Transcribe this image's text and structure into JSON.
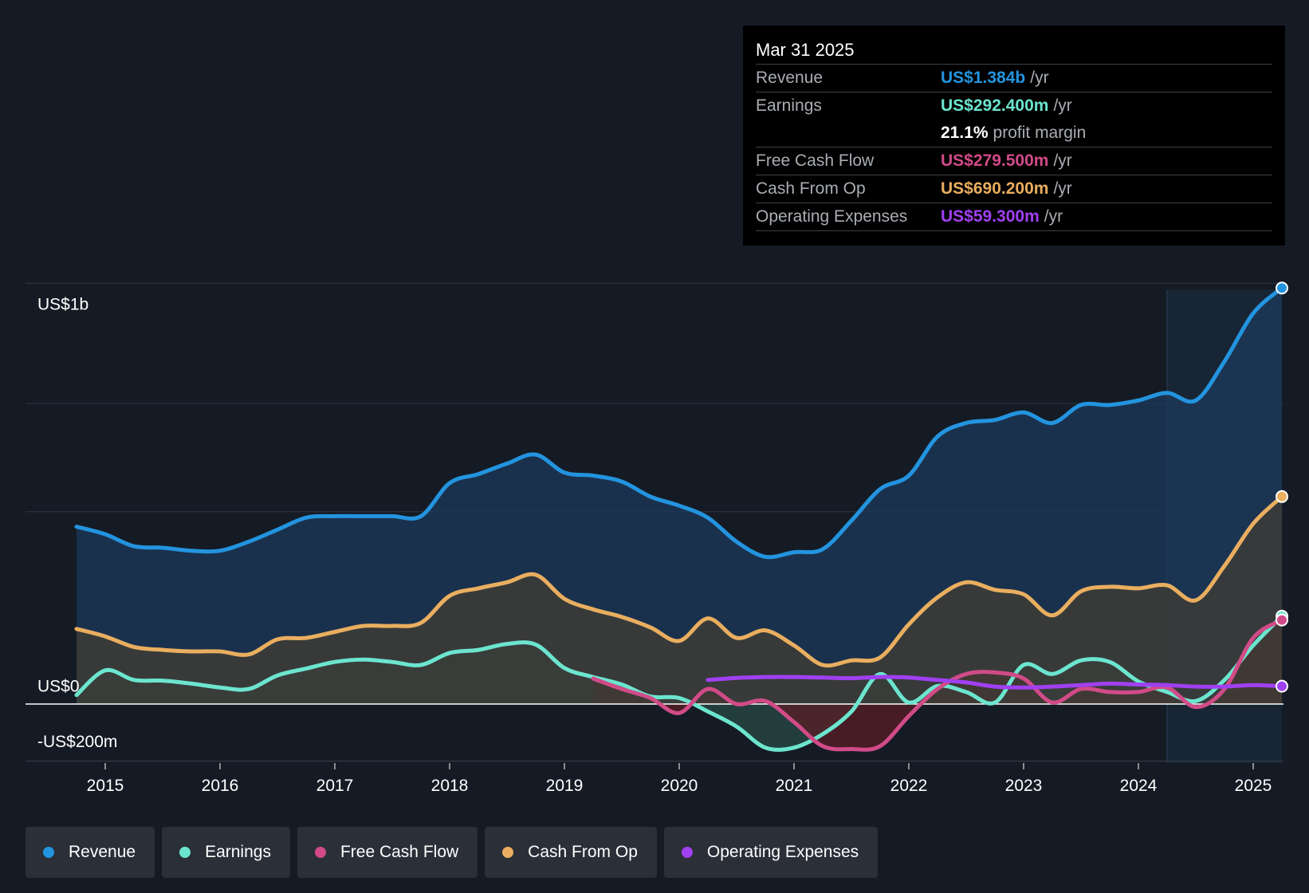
{
  "tooltip": {
    "date": "Mar 31 2025",
    "rows": [
      {
        "label": "Revenue",
        "value": "US$1.384b",
        "suffix": "/yr",
        "color": "#2394df"
      },
      {
        "label": "Earnings",
        "value": "US$292.400m",
        "suffix": "/yr",
        "color": "#6ce5cf"
      },
      {
        "label": "",
        "value": "21.1%",
        "suffix": "profit margin",
        "color": "#ffffff"
      },
      {
        "label": "Free Cash Flow",
        "value": "US$279.500m",
        "suffix": "/yr",
        "color": "#d14b88"
      },
      {
        "label": "Cash From Op",
        "value": "US$690.200m",
        "suffix": "/yr",
        "color": "#e9ae5f"
      },
      {
        "label": "Operating Expenses",
        "value": "US$59.300m",
        "suffix": "/yr",
        "color": "#a040f0"
      }
    ]
  },
  "legend": [
    {
      "label": "Revenue",
      "color": "#2394df"
    },
    {
      "label": "Earnings",
      "color": "#6ce5cf"
    },
    {
      "label": "Free Cash Flow",
      "color": "#d14b88"
    },
    {
      "label": "Cash From Op",
      "color": "#e9ae5f"
    },
    {
      "label": "Operating Expenses",
      "color": "#a040f0"
    }
  ],
  "chart_data": {
    "type": "area",
    "title": "",
    "xlabel": "",
    "ylabel": "",
    "y_axis_labels": [
      "US$1b",
      "US$0",
      "-US$200m"
    ],
    "x_ticks": [
      "2015",
      "2016",
      "2017",
      "2018",
      "2019",
      "2020",
      "2021",
      "2022",
      "2023",
      "2024",
      "2025"
    ],
    "xlim": [
      2014.7,
      2025.25
    ],
    "ylim": [
      -200,
      1400
    ],
    "forecast_start": 2024.25,
    "series": [
      {
        "name": "Revenue",
        "color": "#2394df",
        "fill": true,
        "x": [
          2014.75,
          2015.0,
          2015.25,
          2015.5,
          2015.75,
          2016.0,
          2016.25,
          2016.5,
          2016.75,
          2017.0,
          2017.25,
          2017.5,
          2017.75,
          2018.0,
          2018.25,
          2018.5,
          2018.75,
          2019.0,
          2019.25,
          2019.5,
          2019.75,
          2020.0,
          2020.25,
          2020.5,
          2020.75,
          2021.0,
          2021.25,
          2021.5,
          2021.75,
          2022.0,
          2022.25,
          2022.5,
          2022.75,
          2023.0,
          2023.25,
          2023.5,
          2023.75,
          2024.0,
          2024.25,
          2024.5,
          2024.75,
          2025.0,
          2025.25
        ],
        "values": [
          590,
          565,
          525,
          520,
          510,
          510,
          540,
          580,
          620,
          625,
          625,
          625,
          625,
          735,
          765,
          800,
          830,
          770,
          760,
          740,
          690,
          660,
          620,
          540,
          490,
          505,
          515,
          610,
          715,
          760,
          890,
          935,
          945,
          970,
          935,
          995,
          995,
          1010,
          1035,
          1010,
          1140,
          1300,
          1384
        ]
      },
      {
        "name": "Earnings",
        "color": "#6ce5cf",
        "fill": true,
        "x": [
          2014.75,
          2015.0,
          2015.25,
          2015.5,
          2015.75,
          2016.0,
          2016.25,
          2016.5,
          2016.75,
          2017.0,
          2017.25,
          2017.5,
          2017.75,
          2018.0,
          2018.25,
          2018.5,
          2018.75,
          2019.0,
          2019.25,
          2019.5,
          2019.75,
          2020.0,
          2020.25,
          2020.5,
          2020.75,
          2021.0,
          2021.25,
          2021.5,
          2021.75,
          2022.0,
          2022.25,
          2022.5,
          2022.75,
          2023.0,
          2023.25,
          2023.5,
          2023.75,
          2024.0,
          2024.25,
          2024.5,
          2024.75,
          2025.0,
          2025.25
        ],
        "values": [
          30,
          112,
          80,
          78,
          68,
          55,
          50,
          95,
          118,
          140,
          148,
          140,
          130,
          170,
          180,
          200,
          198,
          120,
          90,
          65,
          25,
          20,
          -25,
          -75,
          -145,
          -145,
          -100,
          -25,
          100,
          5,
          60,
          40,
          5,
          130,
          100,
          145,
          140,
          75,
          40,
          10,
          80,
          195,
          292.4
        ]
      },
      {
        "name": "Free Cash Flow",
        "color": "#d14b88",
        "fill": true,
        "x": [
          2019.25,
          2019.5,
          2019.75,
          2020.0,
          2020.25,
          2020.5,
          2020.75,
          2021.0,
          2021.25,
          2021.5,
          2021.75,
          2022.0,
          2022.25,
          2022.5,
          2022.75,
          2023.0,
          2023.25,
          2023.5,
          2023.75,
          2024.0,
          2024.25,
          2024.5,
          2024.75,
          2025.0,
          2025.25
        ],
        "values": [
          85,
          50,
          20,
          -30,
          50,
          0,
          10,
          -60,
          -140,
          -150,
          -140,
          -40,
          50,
          100,
          105,
          85,
          5,
          50,
          40,
          40,
          55,
          -10,
          50,
          220,
          279.5
        ]
      },
      {
        "name": "Cash From Op",
        "color": "#e9ae5f",
        "fill": true,
        "x": [
          2014.75,
          2015.0,
          2015.25,
          2015.5,
          2015.75,
          2016.0,
          2016.25,
          2016.5,
          2016.75,
          2017.0,
          2017.25,
          2017.5,
          2017.75,
          2018.0,
          2018.25,
          2018.5,
          2018.75,
          2019.0,
          2019.25,
          2019.5,
          2019.75,
          2020.0,
          2020.25,
          2020.5,
          2020.75,
          2021.0,
          2021.25,
          2021.5,
          2021.75,
          2022.0,
          2022.25,
          2022.5,
          2022.75,
          2023.0,
          2023.25,
          2023.5,
          2023.75,
          2024.0,
          2024.25,
          2024.5,
          2024.75,
          2025.0,
          2025.25
        ],
        "values": [
          250,
          225,
          190,
          180,
          175,
          175,
          165,
          215,
          220,
          240,
          260,
          260,
          270,
          360,
          385,
          405,
          430,
          350,
          315,
          290,
          255,
          210,
          285,
          220,
          245,
          195,
          130,
          145,
          155,
          265,
          355,
          405,
          380,
          365,
          295,
          375,
          390,
          385,
          395,
          345,
          460,
          600,
          690.2
        ]
      },
      {
        "name": "Operating Expenses",
        "color": "#a040f0",
        "fill": false,
        "x": [
          2020.25,
          2020.5,
          2020.75,
          2021.0,
          2021.25,
          2021.5,
          2021.75,
          2022.0,
          2022.25,
          2022.5,
          2022.75,
          2023.0,
          2023.25,
          2023.5,
          2023.75,
          2024.0,
          2024.25,
          2024.5,
          2024.75,
          2025.0,
          2025.25
        ],
        "values": [
          80,
          87,
          90,
          90,
          88,
          86,
          90,
          88,
          80,
          72,
          58,
          55,
          58,
          63,
          68,
          65,
          63,
          58,
          58,
          63,
          59.3
        ]
      }
    ]
  }
}
